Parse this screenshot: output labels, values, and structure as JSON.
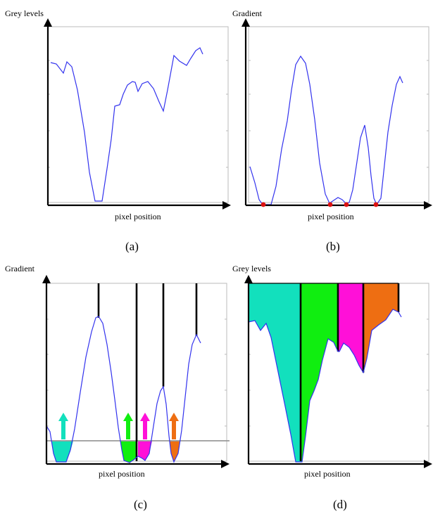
{
  "panels": [
    {
      "id": "a",
      "title": "Grey levels",
      "xlabel": "pixel position",
      "caption": "(a)"
    },
    {
      "id": "b",
      "title": "Gradient",
      "xlabel": "pixel position",
      "caption": "(b)"
    },
    {
      "id": "c",
      "title": "Gradient",
      "xlabel": "pixel position",
      "caption": "(c)"
    },
    {
      "id": "d",
      "title": "Grey levels",
      "xlabel": "pixel position",
      "caption": "(d)"
    }
  ],
  "colors": {
    "curve": "#3333ee",
    "minima_marker": "#dd1111",
    "basin_1": "#12e0bd",
    "basin_2": "#10ee10",
    "basin_3": "#ff10d8",
    "basin_4": "#ee6e12",
    "water_level": "#999999",
    "dam": "#000000"
  }
}
